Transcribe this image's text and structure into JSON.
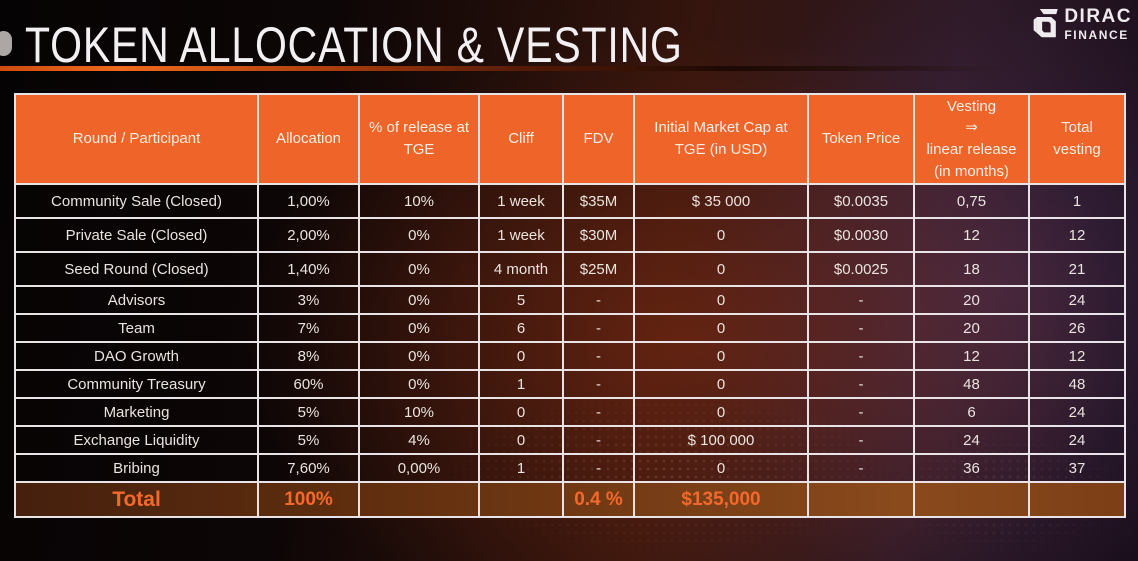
{
  "page": {
    "title": "TOKEN ALLOCATION & VESTING"
  },
  "logo": {
    "name": "DIRAC",
    "subtitle": "FINANCE"
  },
  "colors": {
    "header_bg": "#EF6428",
    "accent_orange": "#F4692B",
    "grid_border": "#E8E3E6",
    "body_text": "#EAE4DF",
    "total_row_bg_left": "#45200D",
    "total_row_bg_right": "#8A4A1C"
  },
  "table": {
    "headers": [
      "Round / Participant",
      "Allocation",
      "% of release at TGE",
      "Cliff",
      "FDV",
      "Initial Market Cap at TGE (in USD)",
      "Token Price",
      "Vesting\n⇒\nlinear release\n(in months)",
      "Total\nvesting"
    ],
    "rows": [
      [
        "Community Sale (Closed)",
        "1,00%",
        "10%",
        "1 week",
        "$35M",
        "$ 35 000",
        "$0.0035",
        "0,75",
        "1"
      ],
      [
        "Private Sale (Closed)",
        "2,00%",
        "0%",
        "1 week",
        "$30M",
        "0",
        "$0.0030",
        "12",
        "12"
      ],
      [
        "Seed Round (Closed)",
        "1,40%",
        "0%",
        "4 month",
        "$25M",
        "0",
        "$0.0025",
        "18",
        "21"
      ],
      [
        "Advisors",
        "3%",
        "0%",
        "5",
        "-",
        "0",
        "-",
        "20",
        "24"
      ],
      [
        "Team",
        "7%",
        "0%",
        "6",
        "-",
        "0",
        "-",
        "20",
        "26"
      ],
      [
        "DAO Growth",
        "8%",
        "0%",
        "0",
        "-",
        "0",
        "-",
        "12",
        "12"
      ],
      [
        "Community Treasury",
        "60%",
        "0%",
        "1",
        "-",
        "0",
        "-",
        "48",
        "48"
      ],
      [
        "Marketing",
        "5%",
        "10%",
        "0",
        "-",
        "0",
        "-",
        "6",
        "24"
      ],
      [
        "Exchange Liquidity",
        "5%",
        "4%",
        "0",
        "-",
        "$ 100 000",
        "-",
        "24",
        "24"
      ],
      [
        "Bribing",
        "7,60%",
        "0,00%",
        "1",
        "-",
        "0",
        "-",
        "36",
        "37"
      ]
    ],
    "total_row": [
      "Total",
      "100%",
      "",
      "",
      "0.4 %",
      "$135,000",
      "",
      "",
      ""
    ]
  }
}
